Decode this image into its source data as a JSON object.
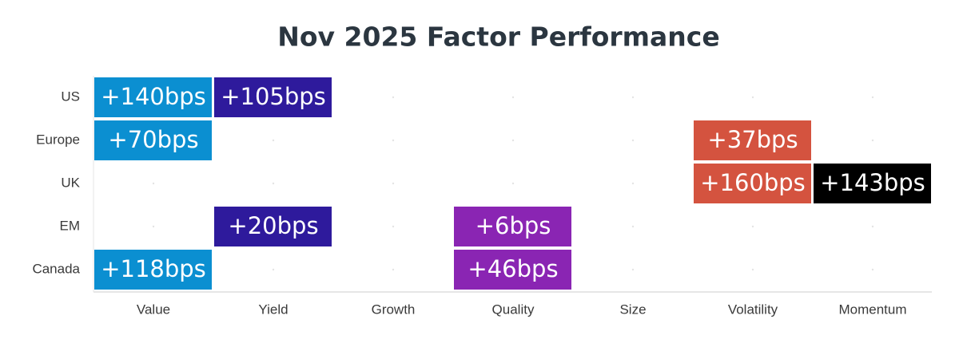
{
  "chart_data": {
    "type": "tile",
    "title": "Nov 2025 Factor Performance",
    "columns": [
      "Value",
      "Yield",
      "Growth",
      "Quality",
      "Size",
      "Volatility",
      "Momentum"
    ],
    "rows": [
      "US",
      "Europe",
      "UK",
      "EM",
      "Canada"
    ],
    "column_colors": [
      "#0b8fd1",
      "#2e1a9c",
      null,
      "#8a25b3",
      null,
      "#d4533f",
      "#000000"
    ],
    "values": [
      [
        140,
        105,
        null,
        null,
        null,
        null,
        null
      ],
      [
        70,
        null,
        null,
        null,
        null,
        37,
        null
      ],
      [
        null,
        null,
        null,
        null,
        null,
        160,
        143
      ],
      [
        null,
        20,
        null,
        6,
        null,
        null,
        null
      ],
      [
        118,
        null,
        null,
        46,
        null,
        null,
        null
      ]
    ],
    "value_labels": [
      [
        "+140bps",
        "+105bps",
        null,
        null,
        null,
        null,
        null
      ],
      [
        "+70bps",
        null,
        null,
        null,
        null,
        "+37bps",
        null
      ],
      [
        null,
        null,
        null,
        null,
        null,
        "+160bps",
        "+143bps"
      ],
      [
        null,
        "+20bps",
        null,
        "+6bps",
        null,
        null,
        null
      ],
      [
        "+118bps",
        null,
        null,
        "+46bps",
        null,
        null,
        null
      ]
    ]
  }
}
